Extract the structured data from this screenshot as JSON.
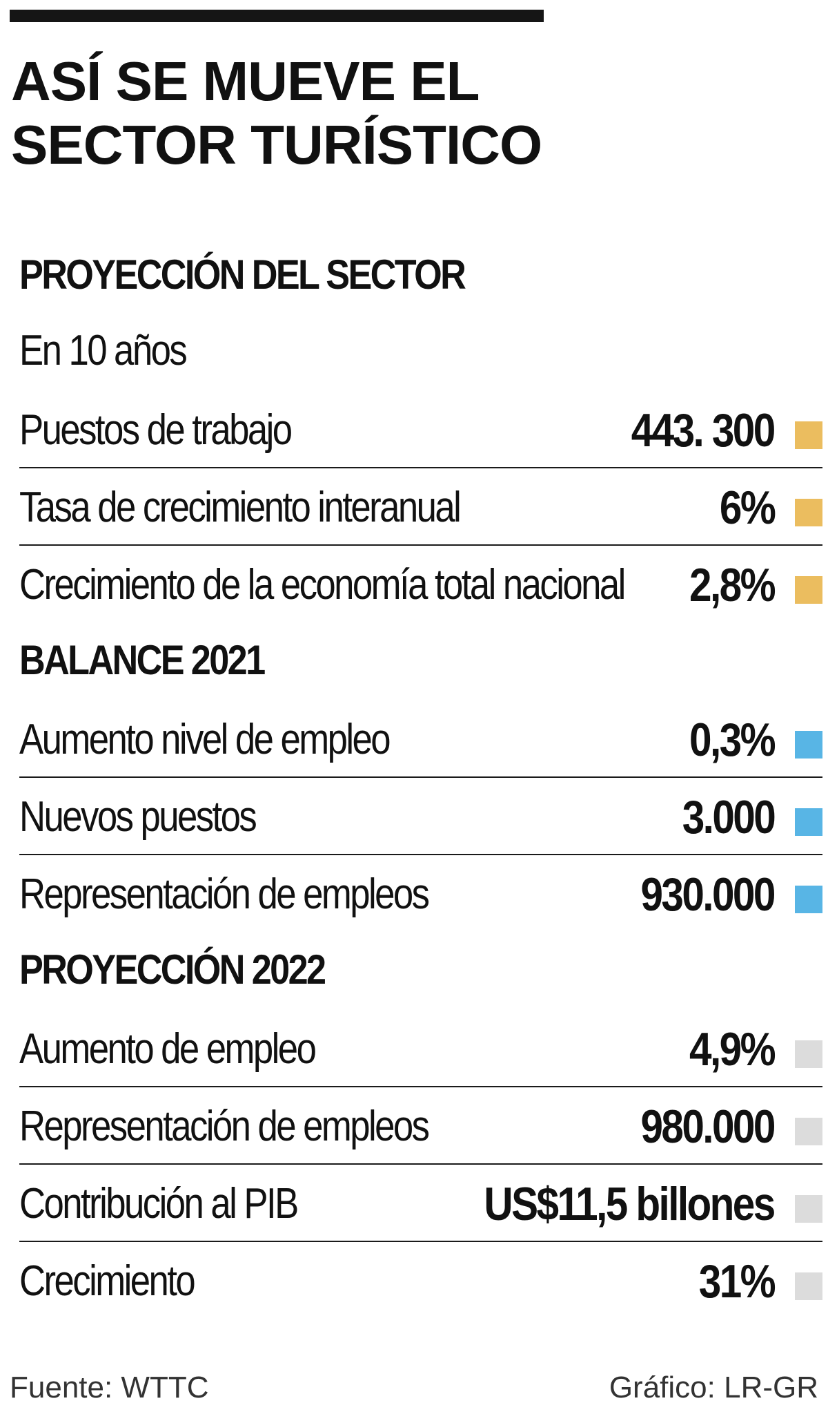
{
  "title": {
    "line1": "ASÍ SE MUEVE EL",
    "line2": "SECTOR TURÍSTICO"
  },
  "colors": {
    "projection": "#ebbd5f",
    "balance": "#58b5e5",
    "projection_2022": "#dcdcdc",
    "top_bar": "#151515"
  },
  "sections": {
    "proyeccion_sector": {
      "heading": "PROYECCIÓN DEL SECTOR",
      "subheading": "En 10 años",
      "rows": [
        {
          "label": "Puestos de trabajo",
          "value": "443. 300"
        },
        {
          "label": "Tasa de crecimiento interanual",
          "value": "6%"
        },
        {
          "label": "Crecimiento de la economía total nacional",
          "value": "2,8%"
        }
      ]
    },
    "balance_2021": {
      "heading": "BALANCE 2021",
      "rows": [
        {
          "label": "Aumento nivel de empleo",
          "value": "0,3%"
        },
        {
          "label": "Nuevos puestos",
          "value": "3.000"
        },
        {
          "label": "Representación de empleos",
          "value": "930.000"
        }
      ]
    },
    "proyeccion_2022": {
      "heading": "PROYECCIÓN 2022",
      "rows": [
        {
          "label": "Aumento de empleo",
          "value": "4,9%"
        },
        {
          "label": "Representación de empleos",
          "value": "980.000"
        },
        {
          "label": "Contribución al PIB",
          "value": "US$11,5 billones"
        },
        {
          "label": "Crecimiento",
          "value": "31%"
        }
      ]
    }
  },
  "footer": {
    "source": "Fuente: WTTC",
    "credit": "Gráfico: LR-GR"
  }
}
